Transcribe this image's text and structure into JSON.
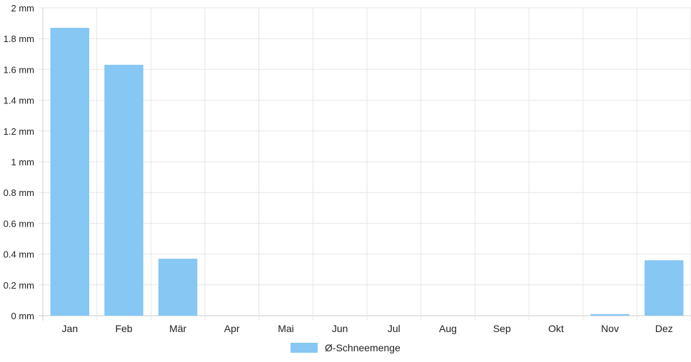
{
  "chart_data": {
    "type": "bar",
    "categories": [
      "Jan",
      "Feb",
      "Mär",
      "Apr",
      "Mai",
      "Jun",
      "Jul",
      "Aug",
      "Sep",
      "Okt",
      "Nov",
      "Dez"
    ],
    "series": [
      {
        "name": "Ø-Schneemenge",
        "values": [
          1.87,
          1.63,
          0.37,
          0,
          0,
          0,
          0,
          0,
          0,
          0,
          0.01,
          0.36
        ]
      }
    ],
    "unit": "mm",
    "ylim": [
      0,
      2
    ],
    "yticks": [
      0,
      0.2,
      0.4,
      0.6,
      0.8,
      1,
      1.2,
      1.4,
      1.6,
      1.8,
      2
    ],
    "ytick_labels": [
      "0 mm",
      "0.2 mm",
      "0.4 mm",
      "0.6 mm",
      "0.8 mm",
      "1 mm",
      "1.2 mm",
      "1.4 mm",
      "1.6 mm",
      "1.8 mm",
      "2 mm"
    ],
    "grid": true,
    "legend_position": "bottom",
    "colors": {
      "bar": "#86c7f3",
      "grid": "#e6e6e6",
      "axis": "#cccccc"
    }
  }
}
